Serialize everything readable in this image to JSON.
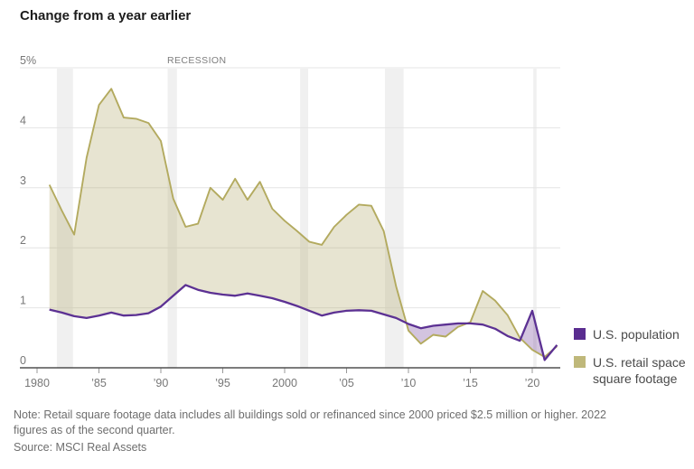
{
  "title": "Change from a year earlier",
  "recession_label": "RECESSION",
  "legend": [
    {
      "label": "U.S. population",
      "color": "#5a2d90"
    },
    {
      "label": "U.S. retail space square footage",
      "color": "#bfb87a"
    }
  ],
  "note": {
    "lines": [
      "Note: Retail square footage data includes all buildings sold or refinanced since 2000 priced $2.5 million or higher. 2022",
      "figures as of the second quarter."
    ]
  },
  "source": "Source: MSCI Real Assets",
  "chart_data": {
    "type": "line",
    "title": "Change from a year earlier",
    "unit": "percent",
    "xlabel": "",
    "ylabel": "",
    "ylim": [
      0,
      5
    ],
    "xlim": [
      1980,
      2022.3
    ],
    "grid": "horizontal",
    "legend_position": "right-bottom",
    "y_ticks": [
      {
        "v": 0,
        "label": "0"
      },
      {
        "v": 1,
        "label": "1"
      },
      {
        "v": 2,
        "label": "2"
      },
      {
        "v": 3,
        "label": "3"
      },
      {
        "v": 4,
        "label": "4"
      },
      {
        "v": 5,
        "label": "5%"
      }
    ],
    "x_ticks": [
      {
        "v": 1980,
        "label": "1980"
      },
      {
        "v": 1985,
        "label": "’85"
      },
      {
        "v": 1990,
        "label": "’90"
      },
      {
        "v": 1995,
        "label": "’95"
      },
      {
        "v": 2000,
        "label": "2000"
      },
      {
        "v": 2005,
        "label": "’05"
      },
      {
        "v": 2010,
        "label": "’10"
      },
      {
        "v": 2015,
        "label": "’15"
      },
      {
        "v": 2020,
        "label": "’20"
      }
    ],
    "recession_bands": [
      [
        1981.6,
        1982.9
      ],
      [
        1990.55,
        1991.3
      ],
      [
        2001.25,
        2001.9
      ],
      [
        2008.1,
        2009.6
      ],
      [
        2020.08,
        2020.35
      ]
    ],
    "years": [
      1981,
      1982,
      1983,
      1984,
      1985,
      1986,
      1987,
      1988,
      1989,
      1990,
      1991,
      1992,
      1993,
      1994,
      1995,
      1996,
      1997,
      1998,
      1999,
      2000,
      2001,
      2002,
      2003,
      2004,
      2005,
      2006,
      2007,
      2008,
      2009,
      2010,
      2011,
      2012,
      2013,
      2014,
      2015,
      2016,
      2017,
      2018,
      2019,
      2020,
      2021,
      2022
    ],
    "series": [
      {
        "name": "U.S. population",
        "color": "#5c3193",
        "values": [
          0.97,
          0.92,
          0.86,
          0.83,
          0.87,
          0.92,
          0.87,
          0.88,
          0.91,
          1.02,
          1.2,
          1.38,
          1.3,
          1.25,
          1.22,
          1.2,
          1.24,
          1.2,
          1.16,
          1.1,
          1.03,
          0.95,
          0.87,
          0.92,
          0.95,
          0.96,
          0.95,
          0.89,
          0.83,
          0.73,
          0.66,
          0.7,
          0.72,
          0.74,
          0.74,
          0.72,
          0.65,
          0.53,
          0.45,
          0.95,
          0.13,
          0.38
        ]
      },
      {
        "name": "U.S. retail space square footage",
        "color": "#b3aa5f",
        "values": [
          3.05,
          2.62,
          2.22,
          3.5,
          4.38,
          4.65,
          4.17,
          4.15,
          4.08,
          3.78,
          2.82,
          2.35,
          2.4,
          3.0,
          2.8,
          3.15,
          2.8,
          3.1,
          2.65,
          2.45,
          2.28,
          2.1,
          2.05,
          2.35,
          2.55,
          2.72,
          2.7,
          2.28,
          1.36,
          0.62,
          0.4,
          0.55,
          0.52,
          0.68,
          0.76,
          1.28,
          1.12,
          0.88,
          0.5,
          0.3,
          0.18,
          0.36
        ]
      }
    ],
    "fill_colors": {
      "retail_above_population": "rgba(183,174,115,0.33)",
      "population_above_retail": "rgba(108,60,150,0.30)"
    },
    "style_colors": {
      "recession_band": "#f0f0f0",
      "gridline": "#e4e4e4",
      "axis": "#2e2e2e",
      "tick": "#999999",
      "tick_label": "#777777"
    }
  }
}
